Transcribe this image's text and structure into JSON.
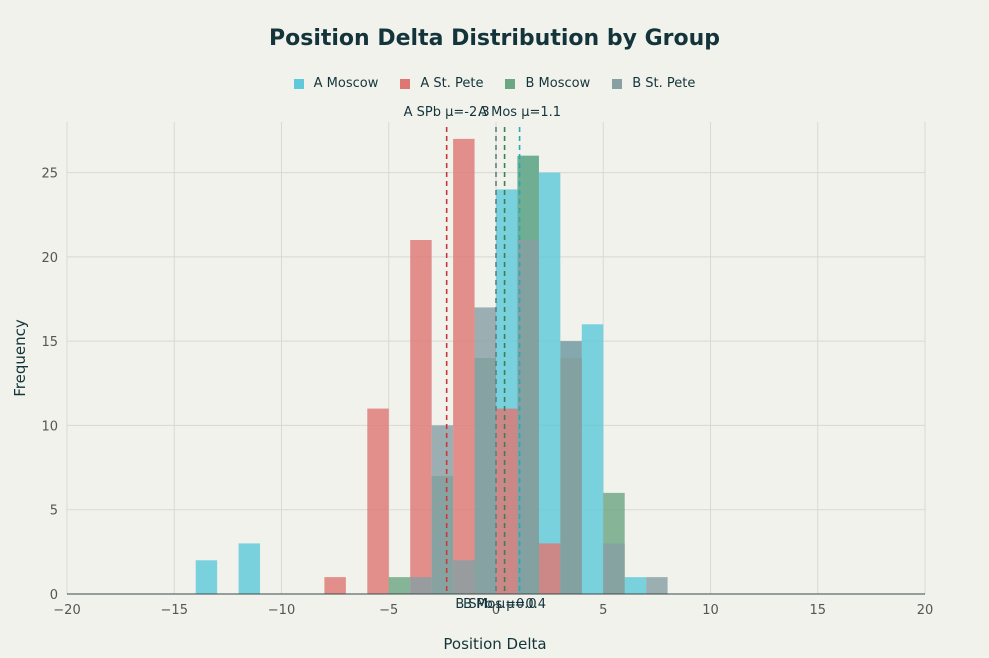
{
  "chart_data": {
    "type": "histogram",
    "title": "Position Delta Distribution by Group",
    "xlabel": "Position Delta",
    "ylabel": "Frequency",
    "xlim": [
      -20,
      20
    ],
    "ylim": [
      0,
      28
    ],
    "xticks": [
      -20,
      -15,
      -10,
      -5,
      0,
      5,
      10,
      15,
      20
    ],
    "xtick_labels": [
      "−20",
      "−15",
      "−10",
      "−5",
      "0",
      "5",
      "10",
      "15",
      "20"
    ],
    "yticks": [
      0,
      5,
      10,
      15,
      20,
      25
    ],
    "bin_width": 1,
    "series": [
      {
        "name": "A Moscow",
        "color": "#5ec9d9",
        "bins": [
          {
            "x0": -14,
            "x1": -13,
            "count": 2
          },
          {
            "x0": -12,
            "x1": -11,
            "count": 3
          },
          {
            "x0": 0,
            "x1": 1,
            "count": 24
          },
          {
            "x0": 1,
            "x1": 2,
            "count": 26
          },
          {
            "x0": 2,
            "x1": 3,
            "count": 25
          },
          {
            "x0": 3,
            "x1": 4,
            "count": 15
          },
          {
            "x0": 4,
            "x1": 5,
            "count": 16
          },
          {
            "x0": 6,
            "x1": 7,
            "count": 1
          }
        ]
      },
      {
        "name": "A St. Pete",
        "color": "#de7774",
        "bins": [
          {
            "x0": -8,
            "x1": -7,
            "count": 1
          },
          {
            "x0": -6,
            "x1": -5,
            "count": 11
          },
          {
            "x0": -4,
            "x1": -3,
            "count": 21
          },
          {
            "x0": -2,
            "x1": -1,
            "count": 27
          },
          {
            "x0": 0,
            "x1": 1,
            "count": 11
          },
          {
            "x0": 2,
            "x1": 3,
            "count": 3
          }
        ]
      },
      {
        "name": "B Moscow",
        "color": "#6ca682",
        "bins": [
          {
            "x0": -5,
            "x1": -4,
            "count": 1
          },
          {
            "x0": -3,
            "x1": -2,
            "count": 7
          },
          {
            "x0": -1,
            "x1": 0,
            "count": 14
          },
          {
            "x0": 1,
            "x1": 2,
            "count": 26
          },
          {
            "x0": 3,
            "x1": 4,
            "count": 14
          },
          {
            "x0": 5,
            "x1": 6,
            "count": 6
          }
        ]
      },
      {
        "name": "B St. Pete",
        "color": "#889fa3",
        "bins": [
          {
            "x0": -4,
            "x1": -3,
            "count": 1
          },
          {
            "x0": -3,
            "x1": -2,
            "count": 10
          },
          {
            "x0": -2,
            "x1": -1,
            "count": 2
          },
          {
            "x0": -1,
            "x1": 0,
            "count": 17
          },
          {
            "x0": 1,
            "x1": 2,
            "count": 21
          },
          {
            "x0": 3,
            "x1": 4,
            "count": 15
          },
          {
            "x0": 5,
            "x1": 6,
            "count": 3
          },
          {
            "x0": 7,
            "x1": 8,
            "count": 1
          }
        ]
      }
    ],
    "mean_lines": [
      {
        "series": "A Moscow",
        "label": "A Mos μ=1.1",
        "x": 1.1,
        "color": "#2aa7b8",
        "label_pos": "top"
      },
      {
        "series": "A St. Pete",
        "label": "A SPb μ=-2.3",
        "x": -2.3,
        "color": "#c8383a",
        "label_pos": "top"
      },
      {
        "series": "B Moscow",
        "label": "B Mos μ=0.4",
        "x": 0.4,
        "color": "#3c7f56",
        "label_pos": "bottom"
      },
      {
        "series": "B St. Pete",
        "label": "B SPb μ=0.0",
        "x": 0.0,
        "color": "#5e7e84",
        "label_pos": "bottom"
      }
    ]
  }
}
